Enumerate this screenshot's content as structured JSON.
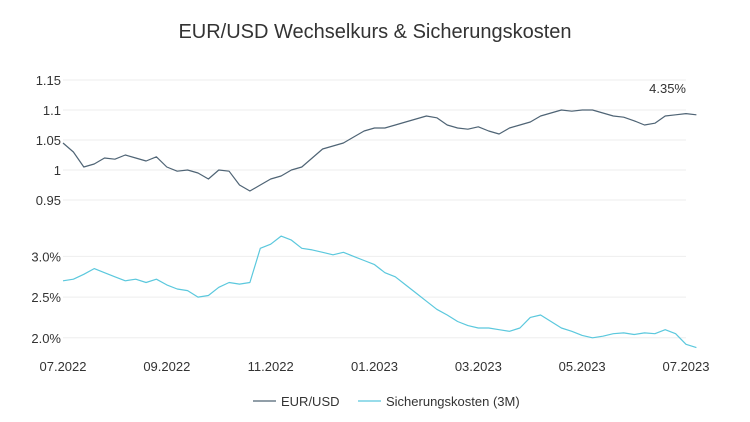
{
  "chart_data": {
    "type": "line",
    "title": "EUR/USD Wechselkurs & Sicherungskosten",
    "x_labels": [
      "07.2022",
      "09.2022",
      "11.2022",
      "01.2023",
      "03.2023",
      "05.2023",
      "07.2023"
    ],
    "panels": [
      {
        "name": "EUR/USD",
        "ylim": [
          0.95,
          1.15
        ],
        "yticks": [
          "0.95",
          "1",
          "1.05",
          "1.1",
          "1.15"
        ],
        "annotation": "4.35%",
        "color": "#4f6475",
        "series": {
          "name": "EUR/USD",
          "x": [
            0,
            0.2,
            0.4,
            0.6,
            0.8,
            1.0,
            1.2,
            1.4,
            1.6,
            1.8,
            2.0,
            2.2,
            2.4,
            2.6,
            2.8,
            3.0,
            3.2,
            3.4,
            3.6,
            3.8,
            4.0,
            4.2,
            4.4,
            4.6,
            4.8,
            5.0,
            5.2,
            5.4,
            5.6,
            5.8,
            6.0,
            6.2,
            6.4,
            6.6,
            6.8,
            7.0,
            7.2,
            7.4,
            7.6,
            7.8,
            8.0,
            8.2,
            8.4,
            8.6,
            8.8,
            9.0,
            9.2,
            9.4,
            9.6,
            9.8,
            10.0,
            10.2,
            10.4,
            10.6,
            10.8,
            11.0,
            11.2,
            11.4,
            11.6,
            11.8,
            12.0,
            12.2
          ],
          "y": [
            1.045,
            1.03,
            1.005,
            1.01,
            1.02,
            1.018,
            1.025,
            1.02,
            1.015,
            1.022,
            1.005,
            0.998,
            1.0,
            0.995,
            0.985,
            1.0,
            0.998,
            0.975,
            0.965,
            0.975,
            0.985,
            0.99,
            1.0,
            1.005,
            1.02,
            1.035,
            1.04,
            1.045,
            1.055,
            1.065,
            1.07,
            1.07,
            1.075,
            1.08,
            1.085,
            1.09,
            1.087,
            1.075,
            1.07,
            1.068,
            1.072,
            1.065,
            1.06,
            1.07,
            1.075,
            1.08,
            1.09,
            1.095,
            1.1,
            1.098,
            1.1,
            1.1,
            1.095,
            1.09,
            1.088,
            1.082,
            1.075,
            1.078,
            1.09,
            1.092,
            1.094,
            1.092
          ]
        }
      },
      {
        "name": "Sicherungskosten (3M)",
        "ylim": [
          1.85,
          3.3
        ],
        "yticks": [
          "2.0%",
          "2.5%",
          "3.0%"
        ],
        "color": "#5bc8dd",
        "series": {
          "name": "Sicherungskosten (3M)",
          "x": [
            0,
            0.2,
            0.4,
            0.6,
            0.8,
            1.0,
            1.2,
            1.4,
            1.6,
            1.8,
            2.0,
            2.2,
            2.4,
            2.6,
            2.8,
            3.0,
            3.2,
            3.4,
            3.6,
            3.8,
            4.0,
            4.2,
            4.4,
            4.6,
            4.8,
            5.0,
            5.2,
            5.4,
            5.6,
            5.8,
            6.0,
            6.2,
            6.4,
            6.6,
            6.8,
            7.0,
            7.2,
            7.4,
            7.6,
            7.8,
            8.0,
            8.2,
            8.4,
            8.6,
            8.8,
            9.0,
            9.2,
            9.4,
            9.6,
            9.8,
            10.0,
            10.2,
            10.4,
            10.6,
            10.8,
            11.0,
            11.2,
            11.4,
            11.6,
            11.8,
            12.0,
            12.2
          ],
          "y": [
            2.7,
            2.72,
            2.78,
            2.85,
            2.8,
            2.75,
            2.7,
            2.72,
            2.68,
            2.72,
            2.65,
            2.6,
            2.58,
            2.5,
            2.52,
            2.62,
            2.68,
            2.66,
            2.68,
            3.1,
            3.15,
            3.25,
            3.2,
            3.1,
            3.08,
            3.05,
            3.02,
            3.05,
            3.0,
            2.95,
            2.9,
            2.8,
            2.75,
            2.65,
            2.55,
            2.45,
            2.35,
            2.28,
            2.2,
            2.15,
            2.12,
            2.12,
            2.1,
            2.08,
            2.12,
            2.25,
            2.28,
            2.2,
            2.12,
            2.08,
            2.03,
            2.0,
            2.02,
            2.05,
            2.06,
            2.04,
            2.06,
            2.05,
            2.1,
            2.05,
            1.92,
            1.88
          ]
        }
      }
    ],
    "legend": [
      "EUR/USD",
      "Sicherungskosten (3M)"
    ],
    "legend_placement": "bottom-center",
    "grid": true
  }
}
